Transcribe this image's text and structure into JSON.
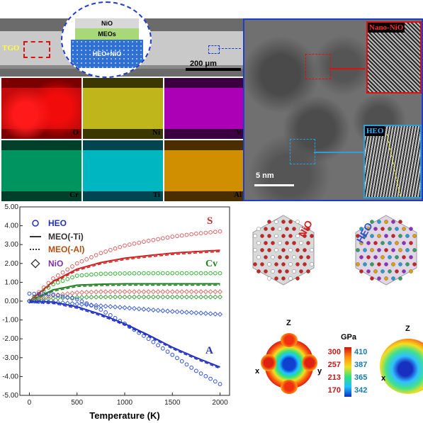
{
  "sem": {
    "layers": [
      "NiO",
      "MEOs",
      "HEO+NiO"
    ],
    "tgo_label": "TGO",
    "scale_bar": "200 μm"
  },
  "eds_maps": [
    {
      "element": "O",
      "color": "#d40000"
    },
    {
      "element": "Ni",
      "color": "#c9c200"
    },
    {
      "element": "V",
      "color": "#c000c8"
    },
    {
      "element": "Cr",
      "color": "#00a870"
    },
    {
      "element": "Ti",
      "color": "#00c8d0"
    },
    {
      "element": "Al",
      "color": "#e09a00"
    }
  ],
  "tem": {
    "inset_top": "Nano-NiO",
    "inset_bottom": "HEO",
    "scale_bar": "5 nm",
    "inset_top_color": "#e01010",
    "inset_bottom_color": "#2aa0d8"
  },
  "chart_data": {
    "type": "line",
    "xlabel": "Temperature (K)",
    "ylabel": "",
    "xlim": [
      -100,
      2100
    ],
    "ylim": [
      -5,
      5
    ],
    "x_ticks": [
      "0",
      "500",
      "1000",
      "1500",
      "2000"
    ],
    "y_ticks": [
      "5.00",
      "4.00",
      "3.00",
      "2.00",
      "1.00",
      "0.00",
      "-1.00",
      "-2.00",
      "-3.00",
      "-4.00",
      "-5.00"
    ],
    "legend": [
      {
        "label": "HEO",
        "marker": "circle",
        "color": "#2233bb"
      },
      {
        "label": "MEO(-Ti)",
        "marker": "solid",
        "color": "#333333"
      },
      {
        "label": "MEO(-Al)",
        "marker": "dotted",
        "color": "#b05010"
      },
      {
        "label": "NiO",
        "marker": "diamond",
        "color": "#8030b0"
      }
    ],
    "annotations": [
      {
        "text": "S",
        "color": "#c03030"
      },
      {
        "text": "Cv",
        "color": "#208020"
      },
      {
        "text": "A",
        "color": "#2233bb"
      }
    ],
    "series": [
      {
        "group": "S",
        "material": "HEO",
        "style": "circle",
        "color": "#e06060",
        "x": [
          0,
          250,
          500,
          750,
          1000,
          1250,
          1500,
          1750,
          2000
        ],
        "y": [
          0,
          1.2,
          2.0,
          2.55,
          2.95,
          3.2,
          3.42,
          3.58,
          3.7
        ]
      },
      {
        "group": "S",
        "material": "MEO",
        "style": "solid",
        "color": "#d02020",
        "x": [
          0,
          250,
          500,
          750,
          1000,
          1250,
          1500,
          1750,
          2000
        ],
        "y": [
          0,
          1.05,
          1.7,
          2.05,
          2.28,
          2.42,
          2.55,
          2.63,
          2.7
        ]
      },
      {
        "group": "Cv",
        "material": "HEO",
        "style": "circle",
        "color": "#30b030",
        "x": [
          0,
          250,
          500,
          750,
          1000,
          1250,
          1500,
          1750,
          2000
        ],
        "y": [
          0,
          0.9,
          1.35,
          1.45,
          1.47,
          1.48,
          1.48,
          1.48,
          1.48
        ]
      },
      {
        "group": "Cv",
        "material": "MEO",
        "style": "solid",
        "color": "#208020",
        "x": [
          0,
          250,
          500,
          750,
          1000,
          1250,
          1500,
          1750,
          2000
        ],
        "y": [
          0,
          0.6,
          0.85,
          0.9,
          0.92,
          0.92,
          0.92,
          0.92,
          0.92
        ]
      },
      {
        "group": "S",
        "material": "NiO",
        "style": "diamond",
        "color": "#e07070",
        "x": [
          0,
          250,
          500,
          750,
          1000,
          1250,
          1500,
          1750,
          2000
        ],
        "y": [
          0,
          0.3,
          0.45,
          0.5,
          0.5,
          0.5,
          0.5,
          0.5,
          0.5
        ]
      },
      {
        "group": "Cv",
        "material": "NiO",
        "style": "diamond",
        "color": "#40a040",
        "x": [
          0,
          250,
          500,
          750,
          1000,
          1250,
          1500,
          1750,
          2000
        ],
        "y": [
          0,
          0.15,
          0.2,
          0.22,
          0.22,
          0.22,
          0.22,
          0.22,
          0.22
        ]
      },
      {
        "group": "A",
        "material": "NiO",
        "style": "diamond",
        "color": "#4060d0",
        "x": [
          0,
          250,
          500,
          750,
          1000,
          1250,
          1500,
          1750,
          2000
        ],
        "y": [
          0,
          -0.05,
          -0.15,
          -0.25,
          -0.35,
          -0.45,
          -0.55,
          -0.62,
          -0.7
        ]
      },
      {
        "group": "A",
        "material": "HEO",
        "style": "circle",
        "color": "#3050e0",
        "x": [
          0,
          250,
          500,
          750,
          1000,
          1250,
          1500,
          1750,
          2000
        ],
        "y": [
          0.4,
          0.35,
          0.1,
          -0.45,
          -1.2,
          -2.0,
          -2.85,
          -3.7,
          -4.4
        ]
      },
      {
        "group": "A",
        "material": "MEO",
        "style": "solid",
        "color": "#2030c0",
        "x": [
          0,
          250,
          500,
          750,
          1000,
          1250,
          1500,
          1750,
          2000
        ],
        "y": [
          0,
          -0.05,
          -0.3,
          -0.7,
          -1.2,
          -1.8,
          -2.45,
          -3.0,
          -3.5
        ]
      }
    ]
  },
  "crystals": [
    {
      "label": "NiO",
      "color": "#d02020"
    },
    {
      "label": "HEO",
      "color": "#3050d0"
    }
  ],
  "elastic": {
    "unit": "GPa",
    "left_scale": [
      "300",
      "257",
      "213",
      "170"
    ],
    "right_scale": [
      "410",
      "387",
      "365",
      "342"
    ],
    "left_color": "#c01818",
    "right_color": "#1a7ab0",
    "axes": [
      "Z",
      "x",
      "y",
      "Z",
      "x"
    ]
  }
}
